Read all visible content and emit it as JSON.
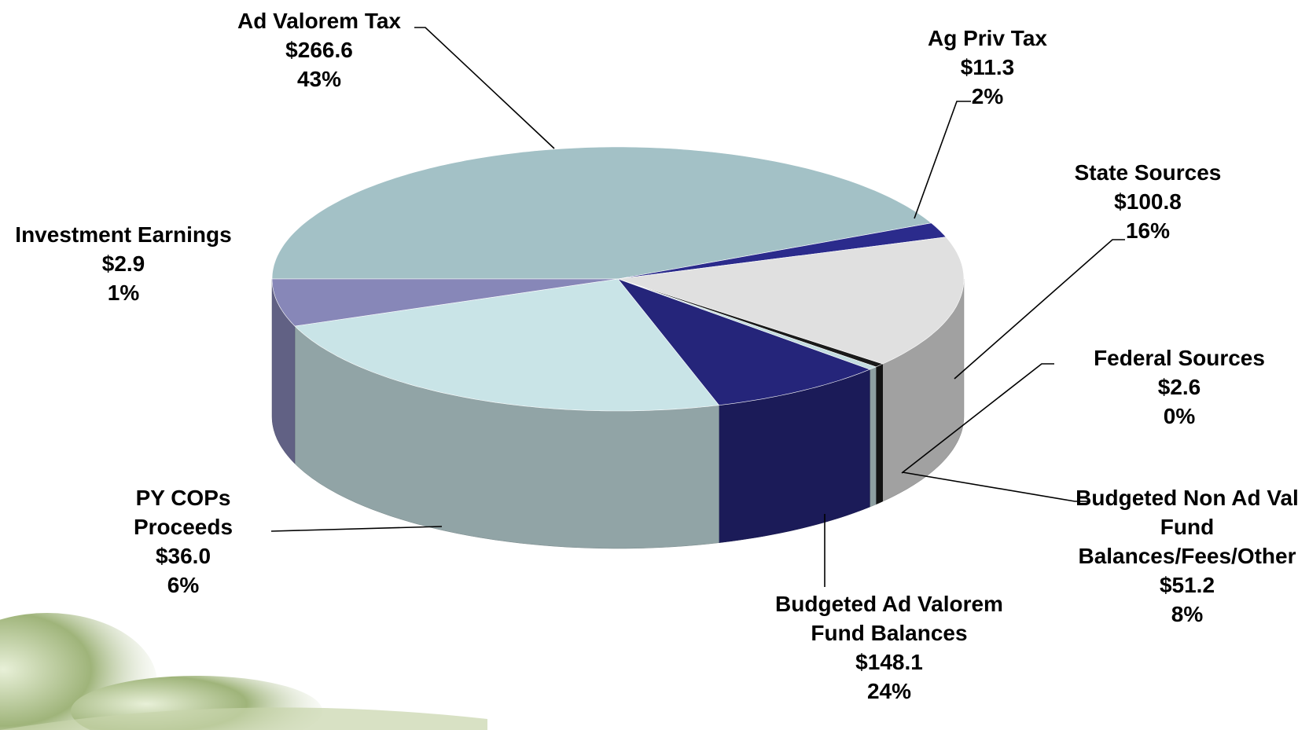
{
  "chart_data": {
    "type": "pie",
    "categories": [
      "Ad Valorem Tax",
      "Ag Priv Tax",
      "State Sources",
      "Investment Earnings",
      "Federal Sources",
      "Budgeted Non Ad Val Fund Balances/Fees/Other",
      "Budgeted Ad Valorem Fund Balances",
      "PY COPs Proceeds"
    ],
    "values": [
      266.6,
      11.3,
      100.8,
      2.9,
      2.6,
      51.2,
      148.1,
      36.0
    ],
    "value_labels": [
      "$266.6",
      "$11.3",
      "$100.8",
      "$2.9",
      "$2.6",
      "$51.2",
      "$148.1",
      "$36.0"
    ],
    "percent_labels": [
      "43%",
      "2%",
      "16%",
      "1%",
      "0%",
      "8%",
      "24%",
      "6%"
    ],
    "colors": [
      "#a3c1c6",
      "#2b2b8c",
      "#e0e0e0",
      "#1a1a1a",
      "#c4dde0",
      "#25257a",
      "#c9e4e7",
      "#8787b8"
    ]
  }
}
